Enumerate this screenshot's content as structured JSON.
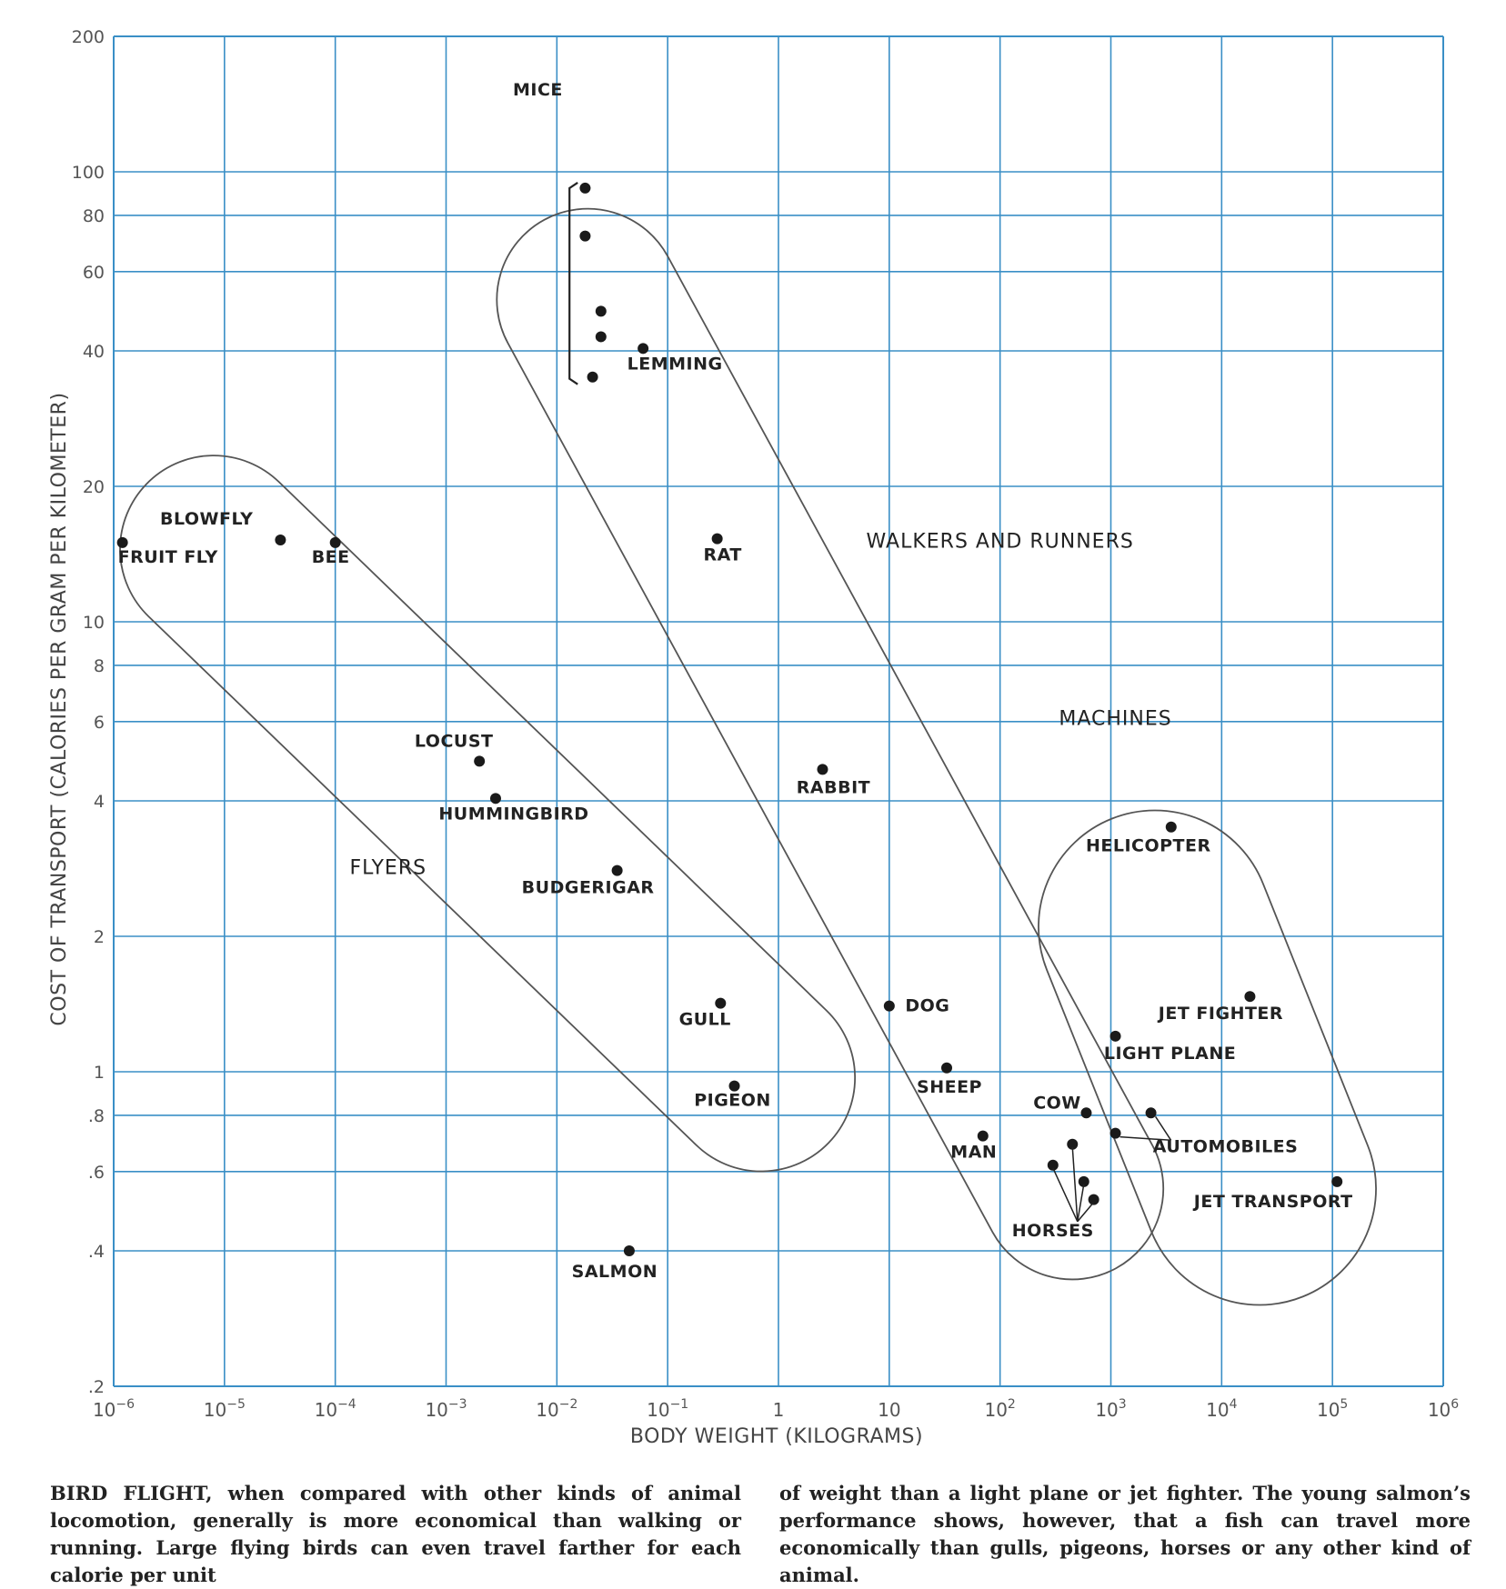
{
  "chart_data": {
    "type": "scatter",
    "xlabel": "BODY WEIGHT (KILOGRAMS)",
    "ylabel": "COST OF TRANSPORT (CALORIES PER GRAM PER KILOMETER)",
    "xscale": "log",
    "yscale": "log",
    "xlim": [
      1e-06,
      1000000.0
    ],
    "ylim": [
      0.2,
      200
    ],
    "x_ticks": [
      "10-6",
      "10-5",
      "10-4",
      "10-3",
      "10-2",
      "10-1",
      "1",
      "10",
      "102",
      "103",
      "104",
      "105",
      "106"
    ],
    "y_ticks": [
      "200",
      "100",
      "80",
      "60",
      "40",
      "20",
      "10",
      "8",
      "6",
      "4",
      "2",
      "1",
      ".8",
      ".6",
      ".4",
      ".2"
    ],
    "grid": true,
    "colors": {
      "grid": "#3a8fc6",
      "point": "#1a1a1a",
      "outline": "#555555"
    },
    "groups": [
      {
        "label": "FLYERS",
        "points": [
          {
            "label": "FRUIT FLY",
            "x": 1.2e-06,
            "y": 15
          },
          {
            "label": "BLOWFLY",
            "x": 3.2e-05,
            "y": 15.2
          },
          {
            "label": "BEE",
            "x": 0.0001,
            "y": 15
          },
          {
            "label": "LOCUST",
            "x": 0.002,
            "y": 4.9
          },
          {
            "label": "HUMMINGBIRD",
            "x": 0.0028,
            "y": 4.05
          },
          {
            "label": "BUDGERIGAR",
            "x": 0.035,
            "y": 2.8
          },
          {
            "label": "GULL",
            "x": 0.3,
            "y": 1.42
          },
          {
            "label": "PIGEON",
            "x": 0.4,
            "y": 0.93
          }
        ]
      },
      {
        "label": "WALKERS AND RUNNERS",
        "points": [
          {
            "label": "MICE",
            "x": 0.018,
            "y": 92
          },
          {
            "label": "",
            "x": 0.018,
            "y": 72
          },
          {
            "label": "",
            "x": 0.025,
            "y": 49
          },
          {
            "label": "",
            "x": 0.025,
            "y": 43
          },
          {
            "label": "",
            "x": 0.021,
            "y": 35
          },
          {
            "label": "LEMMING",
            "x": 0.06,
            "y": 40.5
          },
          {
            "label": "RAT",
            "x": 0.28,
            "y": 15.3
          },
          {
            "label": "RABBIT",
            "x": 2.5,
            "y": 4.7
          },
          {
            "label": "DOG",
            "x": 10,
            "y": 1.4
          },
          {
            "label": "SHEEP",
            "x": 33,
            "y": 1.02
          },
          {
            "label": "MAN",
            "x": 70,
            "y": 0.72
          },
          {
            "label": "COW",
            "x": 600,
            "y": 0.81
          },
          {
            "label": "HORSES",
            "x": 300,
            "y": 0.62
          },
          {
            "label": "",
            "x": 450,
            "y": 0.69
          },
          {
            "label": "",
            "x": 570,
            "y": 0.57
          },
          {
            "label": "",
            "x": 700,
            "y": 0.52
          }
        ]
      },
      {
        "label": "MACHINES",
        "points": [
          {
            "label": "HELICOPTER",
            "x": 3500,
            "y": 3.5
          },
          {
            "label": "JET FIGHTER",
            "x": 18000,
            "y": 1.47
          },
          {
            "label": "LIGHT PLANE",
            "x": 1100,
            "y": 1.2
          },
          {
            "label": "AUTOMOBILES",
            "x": 2300,
            "y": 0.81
          },
          {
            "label": "",
            "x": 1100,
            "y": 0.73
          },
          {
            "label": "JET TRANSPORT",
            "x": 110000,
            "y": 0.57
          }
        ]
      },
      {
        "label": "",
        "points": [
          {
            "label": "SALMON",
            "x": 0.045,
            "y": 0.4
          }
        ]
      }
    ]
  },
  "caption": {
    "left": "BIRD FLIGHT, when compared with other kinds of animal locomotion, generally is more economical than walking or running. Large flying birds can even travel farther for each calorie per unit",
    "right": "of weight than a light plane or jet fighter. The young salmon’s performance shows, however, that a fish can travel more economically than gulls, pigeons, horses or any other kind of animal."
  }
}
